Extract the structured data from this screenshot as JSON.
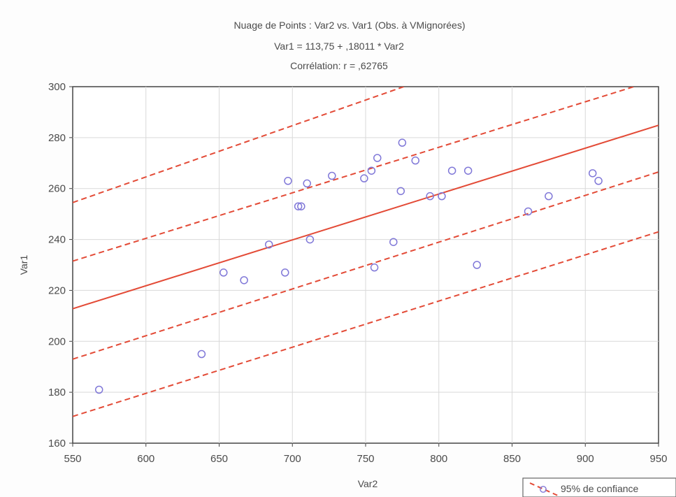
{
  "chart_data": {
    "type": "scatter",
    "title_lines": [
      "Nuage de Points : Var2     vs. Var1     (Obs. à VMignorées)",
      "Var1     = 113,75 + ,18011 * Var2",
      "Corrélation: r = ,62765"
    ],
    "xlabel": "Var2",
    "ylabel": "Var1",
    "xlim": [
      550,
      950
    ],
    "ylim": [
      160,
      300
    ],
    "xticks": [
      550,
      600,
      650,
      700,
      750,
      800,
      850,
      900,
      950
    ],
    "yticks": [
      160,
      180,
      200,
      220,
      240,
      260,
      280,
      300
    ],
    "grid": true,
    "legend": {
      "placement": "bottom-right",
      "label": "95% de confiance"
    },
    "colors": {
      "points": "#8078d8",
      "regression": "#e34a36",
      "confidence": "#e34a36",
      "grid": "#d9d9d9",
      "axis": "#444444"
    },
    "points": [
      {
        "x": 568,
        "y": 181
      },
      {
        "x": 638,
        "y": 195
      },
      {
        "x": 653,
        "y": 227
      },
      {
        "x": 667,
        "y": 224
      },
      {
        "x": 684,
        "y": 238
      },
      {
        "x": 695,
        "y": 227
      },
      {
        "x": 697,
        "y": 263
      },
      {
        "x": 704,
        "y": 253
      },
      {
        "x": 706,
        "y": 253
      },
      {
        "x": 710,
        "y": 262
      },
      {
        "x": 712,
        "y": 240
      },
      {
        "x": 727,
        "y": 265
      },
      {
        "x": 749,
        "y": 264
      },
      {
        "x": 754,
        "y": 267
      },
      {
        "x": 756,
        "y": 229
      },
      {
        "x": 758,
        "y": 272
      },
      {
        "x": 769,
        "y": 239
      },
      {
        "x": 774,
        "y": 259
      },
      {
        "x": 775,
        "y": 278
      },
      {
        "x": 784,
        "y": 271
      },
      {
        "x": 794,
        "y": 257
      },
      {
        "x": 802,
        "y": 257
      },
      {
        "x": 809,
        "y": 267
      },
      {
        "x": 820,
        "y": 267
      },
      {
        "x": 826,
        "y": 230
      },
      {
        "x": 861,
        "y": 251
      },
      {
        "x": 875,
        "y": 257
      },
      {
        "x": 905,
        "y": 266
      },
      {
        "x": 909,
        "y": 263
      }
    ],
    "regression": {
      "intercept": 113.75,
      "slope": 0.18011
    },
    "confidence_lines": [
      {
        "x1": 550,
        "y1": 254.5,
        "x2": 950,
        "y2": 335
      },
      {
        "x1": 550,
        "y1": 231.5,
        "x2": 950,
        "y2": 303
      },
      {
        "x1": 550,
        "y1": 193,
        "x2": 950,
        "y2": 266.5
      },
      {
        "x1": 550,
        "y1": 170.5,
        "x2": 950,
        "y2": 243
      }
    ]
  }
}
